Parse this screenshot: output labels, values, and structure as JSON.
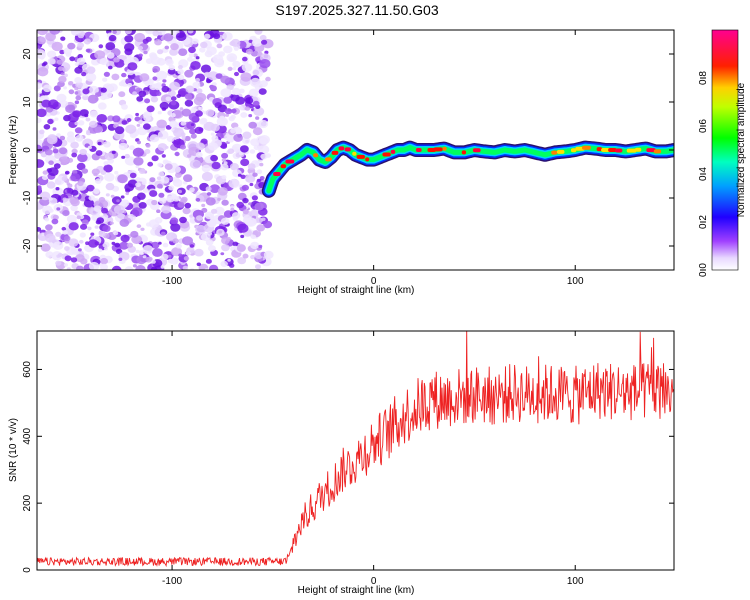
{
  "title": "S197.2025.327.11.50.G03",
  "colorbar": {
    "label": "Normalized spectral amplitude",
    "ticks": [
      0.0,
      0.2,
      0.4,
      0.6,
      0.8
    ],
    "tick_labels": [
      "0.0",
      "0.2",
      "0.4",
      "0.6",
      "0.8"
    ],
    "range": [
      0,
      1
    ],
    "colors": [
      "#ffffff",
      "#d8b8f0",
      "#8000ff",
      "#0000ff",
      "#00c8ff",
      "#00ff80",
      "#00ff00",
      "#ffff00",
      "#ff8000",
      "#ff0000",
      "#ff00ff"
    ]
  },
  "chart_data": [
    {
      "type": "heatmap",
      "xlabel": "Height of straight line (km)",
      "ylabel": "Frequency (Hz)",
      "xlim": [
        -167,
        149
      ],
      "ylim": [
        -25,
        25
      ],
      "xticks": [
        -100,
        0,
        100
      ],
      "xtick_labels": [
        "-100",
        "0",
        "100"
      ],
      "yticks": [
        -20,
        -10,
        0,
        10,
        20
      ],
      "ytick_labels": [
        "-20",
        "-10",
        "0",
        "10",
        "20"
      ],
      "noise_region_x": [
        -167,
        -52
      ],
      "ridge": {
        "x": [
          -52,
          -50,
          -47,
          -44,
          -40,
          -36,
          -33,
          -30,
          -27,
          -24,
          -21,
          -18,
          -15,
          -12,
          -9,
          -6,
          -3,
          0,
          3,
          6,
          9,
          12,
          15,
          18,
          21,
          24,
          27,
          30,
          35,
          40,
          45,
          50,
          55,
          60,
          65,
          70,
          75,
          80,
          85,
          90,
          95,
          100,
          105,
          110,
          115,
          120,
          125,
          130,
          135,
          140,
          145,
          149
        ],
        "y": [
          -8.5,
          -6,
          -4.5,
          -3,
          -2,
          -1,
          0,
          -0.5,
          -2,
          -2.5,
          -1.5,
          0,
          0.5,
          0,
          -1,
          -1.5,
          -2,
          -2,
          -1.5,
          -1,
          -0.5,
          0,
          0,
          0.5,
          0,
          0,
          0,
          0,
          0.3,
          -0.5,
          -0.5,
          0,
          -0.3,
          -0.5,
          0,
          -0.3,
          0,
          -0.5,
          -1,
          -0.5,
          -0.3,
          0,
          0.5,
          0.3,
          0,
          0,
          -0.3,
          0,
          0.3,
          -0.3,
          -0.3,
          0
        ]
      }
    },
    {
      "type": "line",
      "xlabel": "Height of straight line (km)",
      "ylabel": "SNR (10 * v/v)",
      "xlim": [
        -167,
        149
      ],
      "ylim": [
        0,
        715
      ],
      "xticks": [
        -100,
        0,
        100
      ],
      "xtick_labels": [
        "-100",
        "0",
        "100"
      ],
      "yticks": [
        0,
        200,
        400,
        600
      ],
      "ytick_labels": [
        "0",
        "200",
        "400",
        "600"
      ],
      "color": "#ee2222",
      "trend": {
        "x": [
          -167,
          -45,
          -42,
          -40,
          -35,
          -30,
          -25,
          -20,
          -15,
          -10,
          -5,
          0,
          5,
          10,
          15,
          20,
          25,
          30,
          40,
          50,
          60,
          70,
          80,
          90,
          100,
          110,
          120,
          130,
          140,
          149
        ],
        "y": [
          25,
          25,
          30,
          80,
          150,
          190,
          230,
          260,
          300,
          320,
          350,
          380,
          400,
          430,
          460,
          480,
          500,
          510,
          515,
          525,
          520,
          530,
          525,
          530,
          520,
          540,
          535,
          530,
          540,
          525
        ]
      }
    }
  ]
}
